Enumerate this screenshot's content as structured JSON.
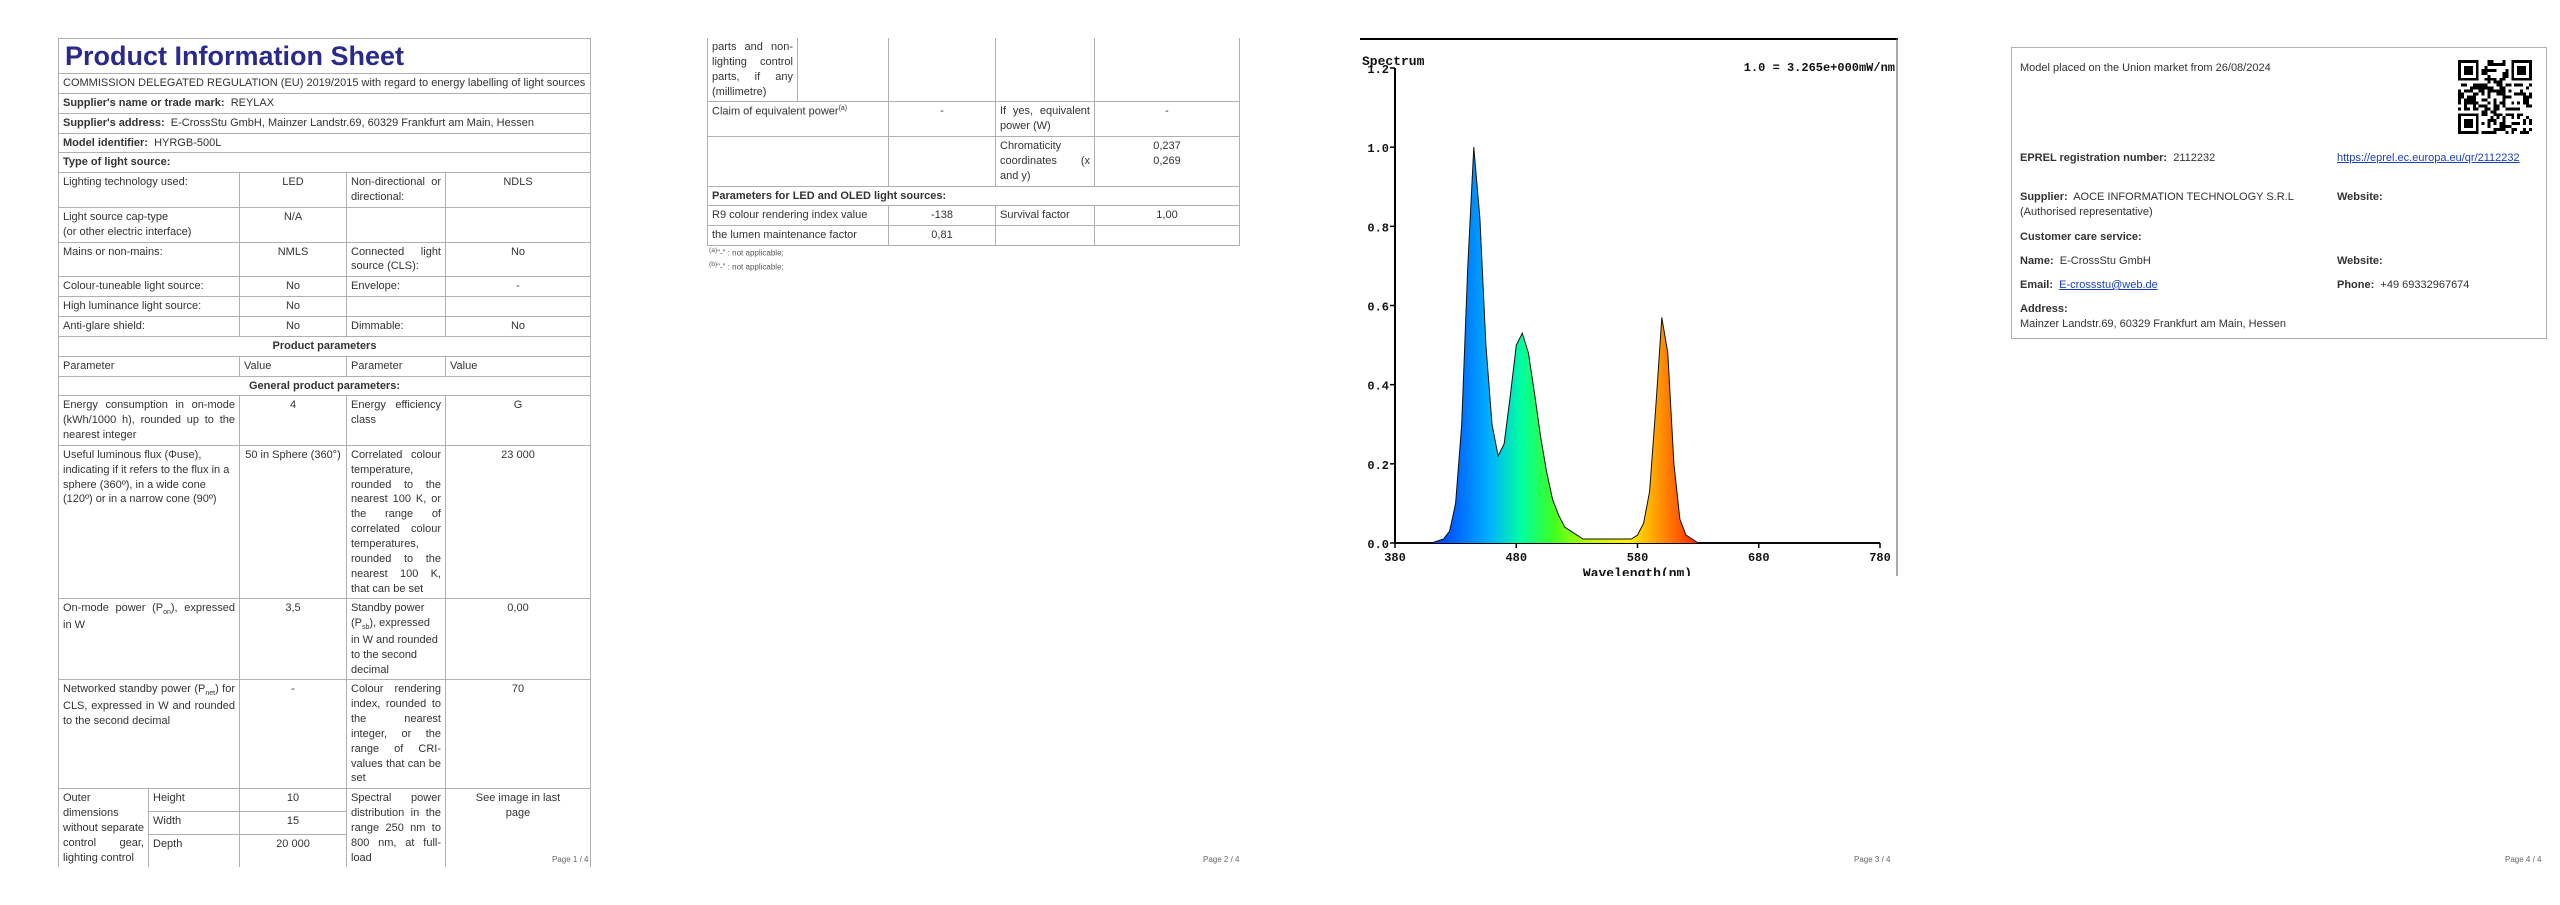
{
  "page1": {
    "title": "Product Information Sheet",
    "regulation": "COMMISSION DELEGATED REGULATION (EU) 2019/2015 with regard to energy labelling of light sources",
    "supplier_label": "Supplier's name or trade mark:",
    "supplier_value": "REYLAX",
    "address_label": "Supplier's address:",
    "address_value": "E-CrossStu GmbH, Mainzer Landstr.69, 60329 Frankfurt am Main, Hessen",
    "model_label": "Model identifier:",
    "model_value": "HYRGB-500L",
    "type_label": "Type of light source:",
    "lighting_tech_label": "Lighting technology used:",
    "lighting_tech_value": "LED",
    "non_directional_label": "Non-directional or directional:",
    "non_directional_value": "NDLS",
    "cap_type_label": "Light source cap-type",
    "cap_type_label2": "(or other electric interface)",
    "cap_type_value": "N/A",
    "mains_label": "Mains or non-mains:",
    "mains_value": "NMLS",
    "connected_label": "Connected light source (CLS):",
    "connected_value": "No",
    "colour_tuneable_label": "Colour-tuneable light source:",
    "colour_tuneable_value": "No",
    "envelope_label": "Envelope:",
    "envelope_value": "-",
    "high_lum_label": "High luminance light source:",
    "high_lum_value": "No",
    "anti_glare_label": "Anti-glare shield:",
    "anti_glare_value": "No",
    "dimmable_label": "Dimmable:",
    "dimmable_value": "No",
    "product_params": "Product parameters",
    "col_param": "Parameter",
    "col_value": "Value",
    "general_params": "General product parameters:",
    "energy_cons_label": "Energy consumption in on-mode (kWh/1000 h), rounded up to the nearest integer",
    "energy_cons_value": "4",
    "energy_class_label": "Energy efficiency class",
    "energy_class_value": "G",
    "flux_label": "Useful luminous flux (Φuse), indicating if it refers to the flux in a sphere (360º), in a wide cone (120º) or in a narrow cone (90º)",
    "flux_value": "50 in Sphere (360°)",
    "cct_label": "Correlated colour temperature, rounded to the nearest 100 K, or the range of correlated colour temperatures, rounded to the nearest 100 K, that can be set",
    "cct_value": "23 000",
    "onmode_label_a": "On-mode power (P",
    "onmode_sub": "on",
    "onmode_label_b": "), expressed in W",
    "onmode_value": "3,5",
    "standby_label_a": "Standby power (P",
    "standby_sub": "sb",
    "standby_label_b": "), expressed in W and rounded to the second decimal",
    "standby_value": "0,00",
    "networked_label_a": "Networked standby power (P",
    "networked_sub": "net",
    "networked_label_b": ") for CLS, expressed in W and rounded to the second decimal",
    "networked_value": "-",
    "cri_label": "Colour rendering index, rounded to the nearest integer, or the range of CRI-values that can be set",
    "cri_value": "70",
    "outer_dim_label": "Outer dimensions without separate control gear, lighting control",
    "height_label": "Height",
    "height_value": "10",
    "width_label": "Width",
    "width_value": "15",
    "depth_label": "Depth",
    "depth_value": "20 000",
    "spd_label": "Spectral power distribution in the range 250 nm to 800 nm, at full-load",
    "spd_value": "See image in last page",
    "page_number": "Page 1 / 4"
  },
  "page2": {
    "cont_label": "parts and non-lighting control parts, if any (millimetre)",
    "equiv_label": "Claim of equivalent power",
    "equiv_sup": "(a)",
    "equiv_value": "-",
    "if_yes_label": "If yes, equivalent power (W)",
    "if_yes_value": "-",
    "chroma_label": "Chromaticity coordinates (x and y)",
    "chroma_x": "0,237",
    "chroma_y": "0,269",
    "led_params": "Parameters for LED and OLED light sources:",
    "r9_label": "R9 colour rendering index value",
    "r9_value": "-138",
    "survival_label": "Survival factor",
    "survival_value": "1,00",
    "lumen_label": "the lumen maintenance factor",
    "lumen_value": "0,81",
    "note_a_sup": "(a)",
    "note_a_text": "\"-\" : not applicable;",
    "note_b_sup": "(b)",
    "note_b_text": "\"-\" : not applicable;",
    "page_number": "Page 2 / 4"
  },
  "page3": {
    "page_number": "Page 3 / 4",
    "chart_data": {
      "type": "line",
      "title": "Spectrum",
      "annotation": "1.0 = 3.265e+000mW/nm",
      "xlabel": "Wavelength(nm)",
      "ylabel": "",
      "xlim": [
        380,
        780
      ],
      "ylim": [
        0,
        1.2
      ],
      "x_ticks": [
        "380",
        "480",
        "580",
        "680",
        "780"
      ],
      "y_ticks": [
        "0.0",
        "0.2",
        "0.4",
        "0.6",
        "0.8",
        "1.0",
        "1.2"
      ],
      "grid": false,
      "series": [
        {
          "x": [
            380,
            400,
            410,
            420,
            425,
            430,
            435,
            440,
            445,
            450,
            455,
            460,
            465,
            470,
            475,
            480,
            485,
            490,
            495,
            500,
            505,
            510,
            515,
            520,
            525,
            530,
            535,
            540,
            545,
            550,
            555,
            560,
            565,
            570,
            575,
            580,
            585,
            590,
            595,
            600,
            605,
            610,
            615,
            620,
            625,
            630,
            635,
            640,
            645,
            650,
            660,
            680,
            700,
            780
          ],
          "values": [
            0,
            0,
            0,
            0.01,
            0.03,
            0.1,
            0.3,
            0.7,
            1.0,
            0.82,
            0.5,
            0.3,
            0.22,
            0.25,
            0.37,
            0.5,
            0.53,
            0.48,
            0.38,
            0.27,
            0.18,
            0.11,
            0.07,
            0.04,
            0.03,
            0.02,
            0.01,
            0.01,
            0.01,
            0.01,
            0.01,
            0.01,
            0.01,
            0.01,
            0.01,
            0.02,
            0.05,
            0.13,
            0.34,
            0.57,
            0.48,
            0.2,
            0.06,
            0.02,
            0.01,
            0,
            0,
            0,
            0,
            0,
            0,
            0,
            0,
            0
          ]
        }
      ]
    }
  },
  "page4": {
    "market_text": "Model placed on the Union market from 26/08/2024",
    "eprel_label": "EPREL registration number:",
    "eprel_value": "2112232",
    "eprel_link": "https://eprel.ec.europa.eu/qr/2112232",
    "supplier_label": "Supplier:",
    "supplier_value": "AOCE INFORMATION TECHNOLOGY S.R.L (Authorised representative)",
    "website_label": "Website:",
    "website_value": "",
    "customer_care": "Customer care service:",
    "name_label": "Name:",
    "name_value": "E-CrossStu GmbH",
    "website2_label": "Website:",
    "email_label": "Email:",
    "email_value": "E-crossstu@web.de",
    "phone_label": "Phone:",
    "phone_value": "+49 69332967674",
    "address_label": "Address:",
    "address_value": "Mainzer Landstr.69, 60329 Frankfurt am Main, Hessen",
    "page_number": "Page 4 / 4"
  }
}
